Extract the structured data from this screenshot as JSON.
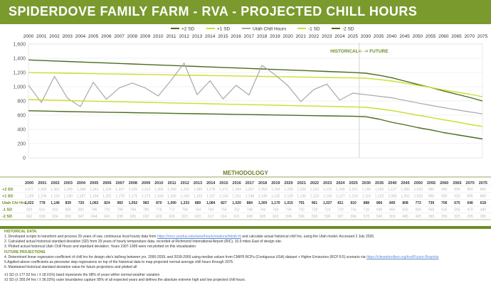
{
  "title": "SPIDERDOVE FAMILY FARM - RVA - PROJECTED CHILL HOURS",
  "colors": {
    "plus2": "#4b6b1e",
    "plus1": "#c8e02e",
    "utah": "#a8a8a8",
    "minus1": "#c8e02e",
    "minus2": "#4b6b1e",
    "accent": "#6b8e23",
    "title_bg": "#7a9a2e"
  },
  "chart_data": {
    "type": "line",
    "title": "",
    "xlabel": "",
    "ylabel": "",
    "x": [
      "2000",
      "2001",
      "2002",
      "2003",
      "2004",
      "2005",
      "2006",
      "2007",
      "2008",
      "2009",
      "2010",
      "2011",
      "2012",
      "2013",
      "2014",
      "2015",
      "2016",
      "2017",
      "2018",
      "2019",
      "2020",
      "2021",
      "2022",
      "2023",
      "2024",
      "2025",
      "2030",
      "2035",
      "2040",
      "2045",
      "2050",
      "2055",
      "2060",
      "2065",
      "2070",
      "2075"
    ],
    "ylim": [
      0,
      1600
    ],
    "yticks": [
      "0",
      "200",
      "400",
      "600",
      "800",
      "1,000",
      "1,200",
      "1,400",
      "1,600"
    ],
    "grid": true,
    "legend_position": "top",
    "divider_label": "HISTORICAL<- -> FUTURE",
    "series": [
      {
        "name": "+2 SD",
        "values": [
          1377,
          1369,
          1362,
          1355,
          1348,
          1341,
          1334,
          1327,
          1320,
          1313,
          1306,
          1299,
          1292,
          1285,
          1278,
          1271,
          1264,
          1257,
          1250,
          1243,
          1236,
          1229,
          1222,
          1215,
          1208,
          1201,
          1190,
          1162,
          1127,
          1080,
          1033,
          990,
          940,
          895,
          850,
          800
        ]
      },
      {
        "name": "+1 SD",
        "values": [
          1199,
          1196,
          1193,
          1190,
          1187,
          1184,
          1181,
          1178,
          1175,
          1172,
          1169,
          1166,
          1163,
          1160,
          1157,
          1154,
          1151,
          1148,
          1145,
          1142,
          1139,
          1136,
          1133,
          1130,
          1127,
          1124,
          1119,
          1102,
          1080,
          1052,
          1020,
          990,
          955,
          925,
          895,
          860
        ]
      },
      {
        "name": "Utah Chill Hours",
        "values": [
          1022,
          778,
          1146,
          839,
          720,
          1062,
          824,
          983,
          1052,
          983,
          870,
          1090,
          1333,
          889,
          1084,
          827,
          1020,
          884,
          1300,
          1170,
          1015,
          791,
          961,
          1037,
          811,
          910,
          888,
          866,
          845,
          808,
          772,
          739,
          706,
          675,
          646,
          618
        ]
      },
      {
        "name": "-1 SD",
        "values": [
          820,
          815,
          810,
          805,
          800,
          796,
          792,
          788,
          784,
          780,
          776,
          772,
          768,
          764,
          760,
          756,
          752,
          748,
          744,
          740,
          736,
          732,
          728,
          724,
          720,
          716,
          710,
          690,
          665,
          633,
          600,
          568,
          535,
          505,
          470,
          440
        ]
      },
      {
        "name": "-2 SD",
        "values": [
          662,
          658,
          654,
          650,
          647,
          644,
          641,
          638,
          635,
          632,
          629,
          626,
          623,
          620,
          617,
          614,
          611,
          608,
          605,
          602,
          599,
          596,
          593,
          590,
          587,
          584,
          578,
          545,
          500,
          465,
          425,
          393,
          355,
          325,
          295,
          265
        ]
      }
    ]
  },
  "table": {
    "columns": [
      "",
      "2000",
      "2001",
      "2002",
      "2003",
      "2004",
      "2005",
      "2006",
      "2007",
      "2008",
      "2009",
      "2010",
      "2011",
      "2012",
      "2013",
      "2014",
      "2015",
      "2016",
      "2017",
      "2018",
      "2019",
      "2020",
      "2021",
      "2022",
      "2023",
      "2024",
      "2025",
      "2030",
      "2035",
      "2040",
      "2045",
      "2050",
      "2055",
      "2060",
      "2065",
      "2070",
      "2075"
    ],
    "rows": [
      {
        "label": "+2 SD",
        "values": [
          "1,377",
          "1,369",
          "1,362",
          "1,355",
          "1,348",
          "1,341",
          "1,334",
          "1,327",
          "1,320",
          "1,313",
          "1,306",
          "1,299",
          "1,292",
          "1,285",
          "1,278",
          "1,271",
          "1,264",
          "1,257",
          "1,250",
          "1,243",
          "1,236",
          "1,229",
          "1,222",
          "1,215",
          "1,208",
          "1,201",
          "1,190",
          "1,162",
          "1,127",
          "1,080",
          "1,033",
          "990",
          "940",
          "895",
          "850",
          "800"
        ]
      },
      {
        "label": "+1 SD",
        "values": [
          "1,199",
          "1,196",
          "1,193",
          "1,190",
          "1,187",
          "1,184",
          "1,181",
          "1,178",
          "1,175",
          "1,172",
          "1,169",
          "1,166",
          "1,163",
          "1,160",
          "1,157",
          "1,154",
          "1,151",
          "1,148",
          "1,145",
          "1,142",
          "1,139",
          "1,136",
          "1,133",
          "1,130",
          "1,127",
          "1,124",
          "1,119",
          "1,102",
          "1,080",
          "1,052",
          "1,020",
          "990",
          "955",
          "925",
          "895",
          "860"
        ]
      },
      {
        "label": "Utah Chl Hrs",
        "values": [
          "1,022",
          "778",
          "1,146",
          "839",
          "720",
          "1,062",
          "824",
          "983",
          "1,052",
          "983",
          "870",
          "1,090",
          "1,333",
          "889",
          "1,084",
          "827",
          "1,020",
          "884",
          "1,300",
          "1,170",
          "1,015",
          "791",
          "961",
          "1,037",
          "811",
          "910",
          "888",
          "866",
          "845",
          "808",
          "772",
          "739",
          "706",
          "675",
          "646",
          "618"
        ]
      },
      {
        "label": "-1 SD",
        "values": [
          "820",
          "815",
          "810",
          "805",
          "800",
          "796",
          "792",
          "788",
          "784",
          "780",
          "776",
          "772",
          "768",
          "764",
          "760",
          "756",
          "752",
          "748",
          "744",
          "740",
          "736",
          "732",
          "728",
          "724",
          "720",
          "716",
          "710",
          "690",
          "665",
          "633",
          "600",
          "568",
          "535",
          "505",
          "470",
          "440"
        ]
      },
      {
        "label": "-2 SD",
        "values": [
          "662",
          "658",
          "654",
          "650",
          "647",
          "644",
          "641",
          "638",
          "635",
          "632",
          "629",
          "626",
          "623",
          "620",
          "617",
          "614",
          "611",
          "608",
          "605",
          "602",
          "599",
          "596",
          "593",
          "590",
          "587",
          "584",
          "578",
          "545",
          "500",
          "465",
          "425",
          "393",
          "355",
          "325",
          "295",
          "265"
        ]
      }
    ]
  },
  "methodology": {
    "heading": "METHODOLOGY",
    "historical_heading": "HISTORICAL DATA:",
    "h1_pre": "1. Developed scripts to transform and process 29 years of raw, continuous local hourly data from ",
    "h1_link": "https://mrcc.purdue.edu/www/hourly/stations/hdstlv.ht",
    "h1_post": " and calculate actual historical chill hrs, using the Utah model. Accessed 2 July 2026.",
    "h2": "2. Calculated actual historical standard deviation (SD) from 29 years of hourly temperature data, recorded at Richmond International Airport (RIC), 10.9 miles East of design site.",
    "h3": "3. Plotted actual historical Utah Chill Hours and standard deviation.  Years 1997-1999 were not plotted on this visualization.",
    "future_heading": "FUTURE PROJECTIONS",
    "f4_pre": "4. Determined linear regression coefficient of chill hrs for design site's lat/long between yrs. 2000-2039, and 2039-2069 using median values from CMIP5 RCPs (Contiguous USA) dataset + Higher Emissions (RCP 8.5) scenario via ",
    "f4_link": "https://climatetoolbox.org/tool/Future-Boxplots",
    "f5": "5.Applied above coefficients as piecewise step regressions on top of the historical data to map projected normal average chill hours through 2075.",
    "f6": "6. Maintained historical standard deviation value for future projections and plotted all",
    "sd1": "±1 SD (± 177.52 hrs / ± 18.01%) band represents the 68% of years within normal weather variation",
    "sd2": "±2 SD (± 355.04 hrs / ± 36.02%) outer boundaries capture 95% of all expected years and defines the absolute extreme high and low projected chill hours."
  }
}
